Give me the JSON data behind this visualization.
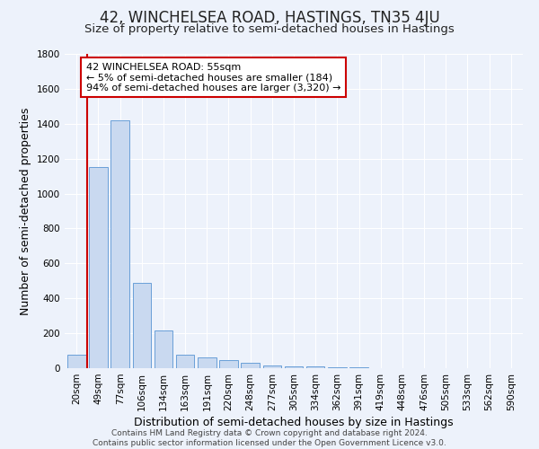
{
  "title": "42, WINCHELSEA ROAD, HASTINGS, TN35 4JU",
  "subtitle": "Size of property relative to semi-detached houses in Hastings",
  "xlabel": "Distribution of semi-detached houses by size in Hastings",
  "ylabel": "Number of semi-detached properties",
  "bin_labels": [
    "20sqm",
    "49sqm",
    "77sqm",
    "106sqm",
    "134sqm",
    "163sqm",
    "191sqm",
    "220sqm",
    "248sqm",
    "277sqm",
    "305sqm",
    "334sqm",
    "362sqm",
    "391sqm",
    "419sqm",
    "448sqm",
    "476sqm",
    "505sqm",
    "533sqm",
    "562sqm",
    "590sqm"
  ],
  "bar_values": [
    75,
    1150,
    1420,
    490,
    215,
    78,
    60,
    48,
    30,
    18,
    10,
    8,
    5,
    3,
    2,
    2,
    1,
    1,
    1,
    0,
    0
  ],
  "bar_color": "#c9d9f0",
  "bar_edge_color": "#6a9fd8",
  "annotation_title": "42 WINCHELSEA ROAD: 55sqm",
  "annotation_line1": "← 5% of semi-detached houses are smaller (184)",
  "annotation_line2": "94% of semi-detached houses are larger (3,320) →",
  "annotation_box_facecolor": "#ffffff",
  "annotation_box_edgecolor": "#cc0000",
  "vline_color": "#cc0000",
  "vline_x": 0.5,
  "ylim_max": 1800,
  "yticks": [
    0,
    200,
    400,
    600,
    800,
    1000,
    1200,
    1400,
    1600,
    1800
  ],
  "footer1": "Contains HM Land Registry data © Crown copyright and database right 2024.",
  "footer2": "Contains public sector information licensed under the Open Government Licence v3.0.",
  "background_color": "#edf2fb",
  "grid_color": "#ffffff",
  "title_fontsize": 12,
  "subtitle_fontsize": 9.5,
  "axis_label_fontsize": 9,
  "tick_fontsize": 7.5,
  "annotation_fontsize": 8,
  "footer_fontsize": 6.5
}
